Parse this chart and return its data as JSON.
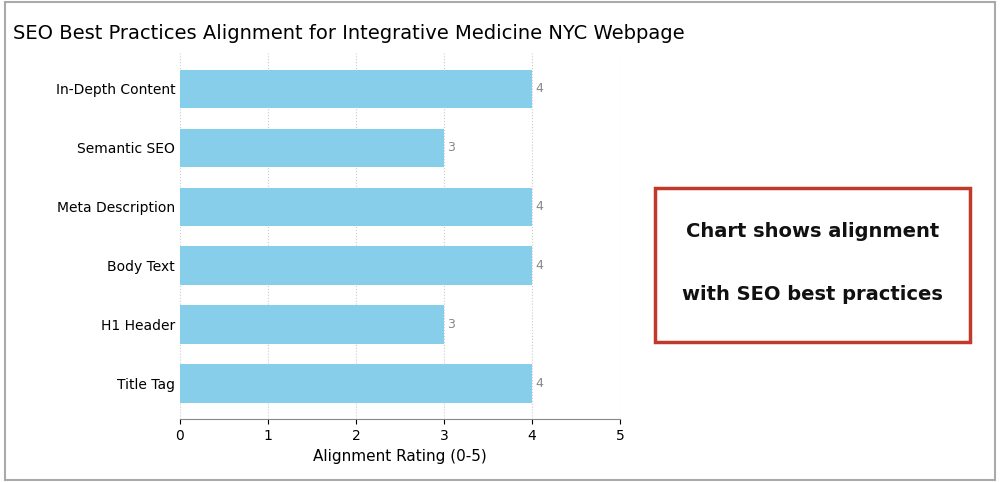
{
  "title": "SEO Best Practices Alignment for Integrative Medicine NYC Webpage",
  "categories": [
    "Title Tag",
    "H1 Header",
    "Body Text",
    "Meta Description",
    "Semantic SEO",
    "In-Depth Content"
  ],
  "values": [
    4,
    3,
    4,
    4,
    3,
    4
  ],
  "bar_color": "#87CEEB",
  "xlabel": "Alignment Rating (0-5)",
  "xlim": [
    0,
    5
  ],
  "xticks": [
    0,
    1,
    2,
    3,
    4,
    5
  ],
  "title_fontsize": 14,
  "label_fontsize": 11,
  "tick_fontsize": 10,
  "annotation_color": "#888888",
  "annotation_fontsize": 9,
  "box_text_line1": "Chart shows alignment",
  "box_text_line2": "with SEO best practices",
  "box_color": "#c0392b",
  "background_color": "#ffffff",
  "grid_color": "#cccccc",
  "outer_border_color": "#aaaaaa"
}
